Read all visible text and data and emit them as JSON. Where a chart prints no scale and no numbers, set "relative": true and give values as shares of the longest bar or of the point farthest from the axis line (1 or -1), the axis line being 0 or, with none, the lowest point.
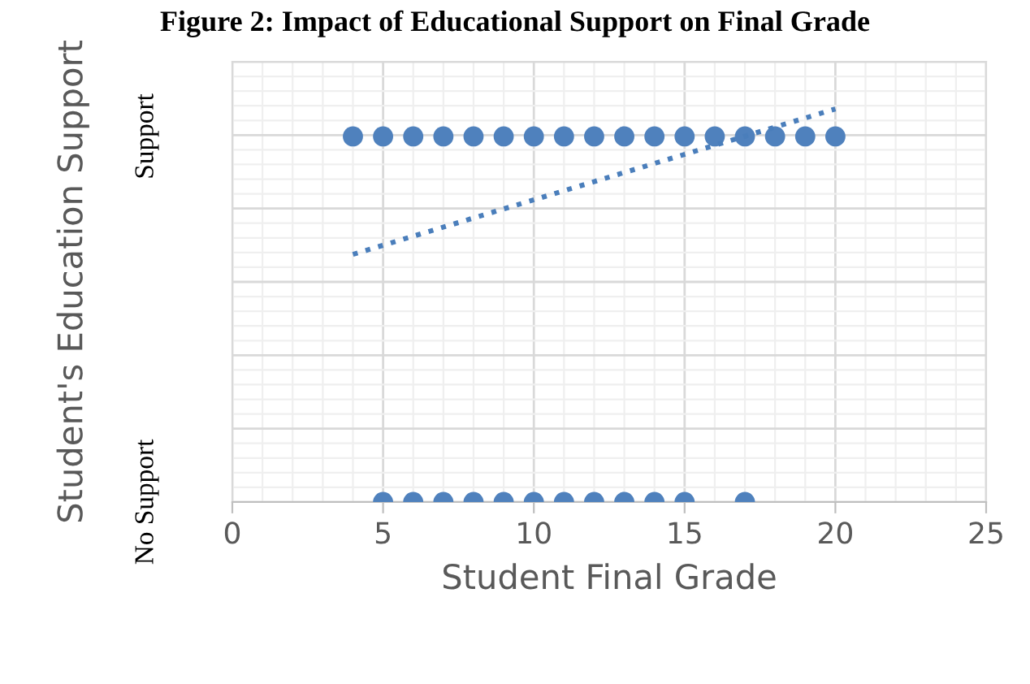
{
  "chart_data": {
    "type": "scatter",
    "title": "Figure 2: Impact of Educational Support on Final Grade",
    "xlabel": "Student Final Grade",
    "ylabel": "Student's Education Support",
    "xlim": [
      0,
      25
    ],
    "xticks": [
      0,
      5,
      10,
      15,
      20,
      25
    ],
    "relative": true,
    "annotations": [
      "Support",
      "No Support"
    ],
    "grid": true,
    "marker": "circle",
    "series": [
      {
        "color": "#4f81bd",
        "x": [
          4,
          5,
          6,
          7,
          8,
          9,
          10,
          11,
          12,
          13,
          14,
          15,
          16,
          17,
          18,
          19,
          20
        ],
        "values": [
          0.93,
          0.93,
          0.93,
          0.93,
          0.93,
          0.93,
          0.93,
          0.93,
          0.93,
          0.93,
          0.93,
          0.93,
          0.93,
          0.93,
          0.93,
          0.93,
          0.93
        ]
      },
      {
        "color": "#4f81bd",
        "x": [
          5,
          6,
          7,
          8,
          9,
          10,
          11,
          12,
          13,
          14,
          15,
          17
        ],
        "values": [
          0,
          0,
          0,
          0,
          0,
          0,
          0,
          0,
          0,
          0,
          0,
          0
        ]
      },
      {
        "type": "line",
        "line_style": "dotted",
        "marker": "none",
        "color": "#4a7ebb",
        "x": [
          4,
          20
        ],
        "values": [
          0.63,
          1
        ]
      }
    ]
  }
}
